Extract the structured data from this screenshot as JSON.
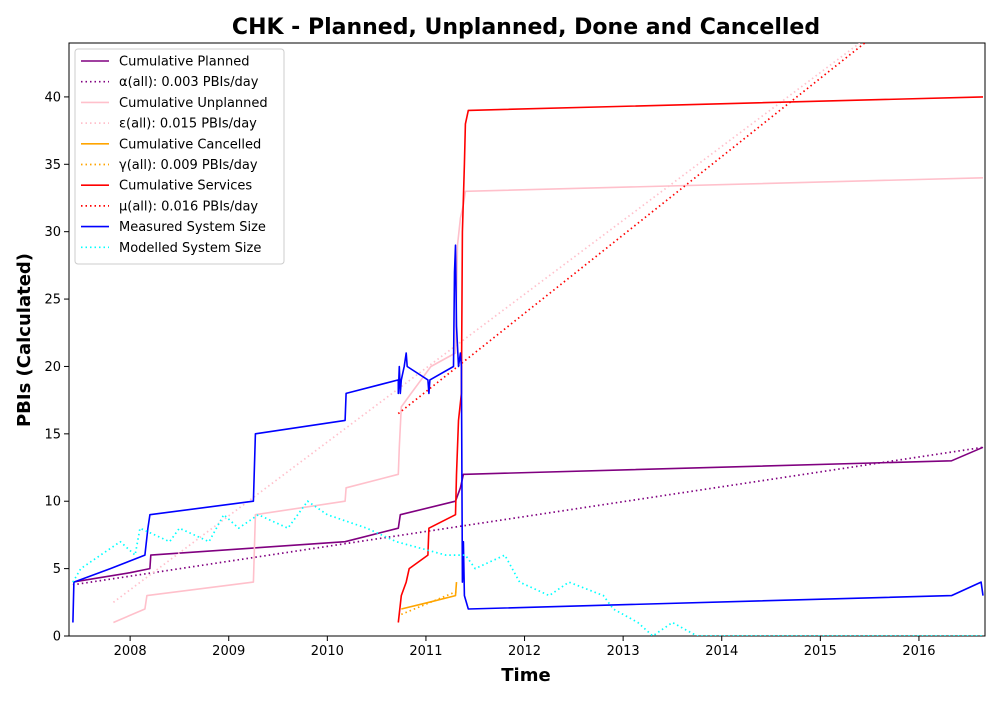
{
  "chart_data": {
    "type": "line",
    "title": "CHK - Planned, Unplanned, Done  and Cancelled",
    "xlabel": "Time",
    "ylabel": "PBIs (Calculated)",
    "xlim": [
      2007.38,
      2016.67
    ],
    "ylim": [
      0,
      44
    ],
    "x_ticks": [
      2008,
      2009,
      2010,
      2011,
      2012,
      2013,
      2014,
      2015,
      2016
    ],
    "y_ticks": [
      0,
      5,
      10,
      15,
      20,
      25,
      30,
      35,
      40
    ],
    "legend_position": "top-left",
    "grid": false,
    "series": [
      {
        "name": "Cumulative Planned",
        "color": "#800080",
        "style": "solid",
        "points": [
          [
            2007.42,
            4
          ],
          [
            2008.0,
            4.7
          ],
          [
            2008.2,
            5
          ],
          [
            2008.21,
            6
          ],
          [
            2010.18,
            7
          ],
          [
            2010.72,
            8
          ],
          [
            2010.74,
            9
          ],
          [
            2011.3,
            10
          ],
          [
            2011.35,
            11
          ],
          [
            2011.38,
            12
          ],
          [
            2011.4,
            12
          ],
          [
            2016.33,
            13
          ],
          [
            2016.65,
            14
          ]
        ]
      },
      {
        "name": "α(all): 0.003 PBIs/day",
        "color": "#800080",
        "style": "dotted",
        "points": [
          [
            2007.42,
            3.8
          ],
          [
            2016.65,
            14
          ]
        ]
      },
      {
        "name": "Cumulative Unplanned",
        "color": "#ffc0cb",
        "style": "solid",
        "points": [
          [
            2007.83,
            1
          ],
          [
            2008.15,
            2
          ],
          [
            2008.17,
            3
          ],
          [
            2009.25,
            4
          ],
          [
            2009.27,
            9
          ],
          [
            2010.18,
            10
          ],
          [
            2010.19,
            11
          ],
          [
            2010.72,
            12
          ],
          [
            2010.73,
            14
          ],
          [
            2010.75,
            17
          ],
          [
            2010.85,
            18
          ],
          [
            2011.05,
            20
          ],
          [
            2011.3,
            21
          ],
          [
            2011.32,
            29
          ],
          [
            2011.35,
            31
          ],
          [
            2011.38,
            32
          ],
          [
            2011.4,
            33
          ],
          [
            2016.65,
            34
          ]
        ]
      },
      {
        "name": "ε(all): 0.015 PBIs/day",
        "color": "#ffc0cb",
        "style": "dotted",
        "points": [
          [
            2007.83,
            2.5
          ],
          [
            2015.4,
            44
          ]
        ]
      },
      {
        "name": "Cumulative Cancelled",
        "color": "#ffa500",
        "style": "solid",
        "points": [
          [
            2010.75,
            2
          ],
          [
            2011.03,
            2.5
          ],
          [
            2011.3,
            3
          ],
          [
            2011.31,
            4
          ]
        ]
      },
      {
        "name": "γ(all): 0.009 PBIs/day",
        "color": "#ffa500",
        "style": "dotted",
        "points": [
          [
            2010.75,
            1.6
          ],
          [
            2011.31,
            3.3
          ]
        ]
      },
      {
        "name": "Cumulative Services",
        "color": "#ff0000",
        "style": "solid",
        "points": [
          [
            2010.72,
            1
          ],
          [
            2010.75,
            3
          ],
          [
            2010.8,
            4
          ],
          [
            2010.83,
            5
          ],
          [
            2011.02,
            6
          ],
          [
            2011.03,
            8
          ],
          [
            2011.3,
            9
          ],
          [
            2011.31,
            12
          ],
          [
            2011.33,
            16
          ],
          [
            2011.36,
            18
          ],
          [
            2011.37,
            30
          ],
          [
            2011.39,
            35
          ],
          [
            2011.4,
            38
          ],
          [
            2011.43,
            39
          ],
          [
            2016.65,
            40
          ]
        ]
      },
      {
        "name": "μ(all): 0.016 PBIs/day",
        "color": "#ff0000",
        "style": "dotted",
        "points": [
          [
            2010.72,
            16.5
          ],
          [
            2015.45,
            44
          ]
        ]
      },
      {
        "name": "Measured System Size",
        "color": "#0000ff",
        "style": "solid",
        "points": [
          [
            2007.42,
            1
          ],
          [
            2007.43,
            4
          ],
          [
            2007.8,
            5
          ],
          [
            2008.15,
            6
          ],
          [
            2008.18,
            8
          ],
          [
            2008.2,
            9
          ],
          [
            2009.25,
            10
          ],
          [
            2009.27,
            15
          ],
          [
            2010.18,
            16
          ],
          [
            2010.19,
            18
          ],
          [
            2010.72,
            19
          ],
          [
            2010.72,
            18
          ],
          [
            2010.73,
            20
          ],
          [
            2010.74,
            18
          ],
          [
            2010.75,
            19
          ],
          [
            2010.78,
            20
          ],
          [
            2010.8,
            21
          ],
          [
            2010.81,
            20
          ],
          [
            2011.02,
            19
          ],
          [
            2011.03,
            18
          ],
          [
            2011.04,
            19
          ],
          [
            2011.28,
            20
          ],
          [
            2011.29,
            27
          ],
          [
            2011.3,
            29
          ],
          [
            2011.31,
            23
          ],
          [
            2011.33,
            20
          ],
          [
            2011.35,
            21
          ],
          [
            2011.36,
            20
          ],
          [
            2011.37,
            4
          ],
          [
            2011.38,
            7
          ],
          [
            2011.39,
            3
          ],
          [
            2011.43,
            2
          ],
          [
            2016.33,
            3
          ],
          [
            2016.63,
            4
          ],
          [
            2016.65,
            3
          ]
        ]
      },
      {
        "name": "Modelled System Size",
        "color": "#00ffff",
        "style": "dotted",
        "points": [
          [
            2007.42,
            4
          ],
          [
            2007.5,
            5
          ],
          [
            2007.7,
            6
          ],
          [
            2007.9,
            7
          ],
          [
            2008.05,
            6
          ],
          [
            2008.1,
            8
          ],
          [
            2008.4,
            7
          ],
          [
            2008.5,
            8
          ],
          [
            2008.8,
            7
          ],
          [
            2008.95,
            9
          ],
          [
            2009.1,
            8
          ],
          [
            2009.3,
            9
          ],
          [
            2009.6,
            8
          ],
          [
            2009.8,
            10
          ],
          [
            2010.0,
            9
          ],
          [
            2010.4,
            8
          ],
          [
            2010.7,
            7
          ],
          [
            2011.2,
            6
          ],
          [
            2011.4,
            6
          ],
          [
            2011.5,
            5
          ],
          [
            2011.8,
            6
          ],
          [
            2011.95,
            4
          ],
          [
            2012.25,
            3
          ],
          [
            2012.45,
            4
          ],
          [
            2012.8,
            3
          ],
          [
            2012.9,
            2
          ],
          [
            2013.15,
            1
          ],
          [
            2013.3,
            0
          ],
          [
            2013.5,
            1
          ],
          [
            2013.75,
            0
          ],
          [
            2016.65,
            0
          ]
        ]
      }
    ]
  }
}
